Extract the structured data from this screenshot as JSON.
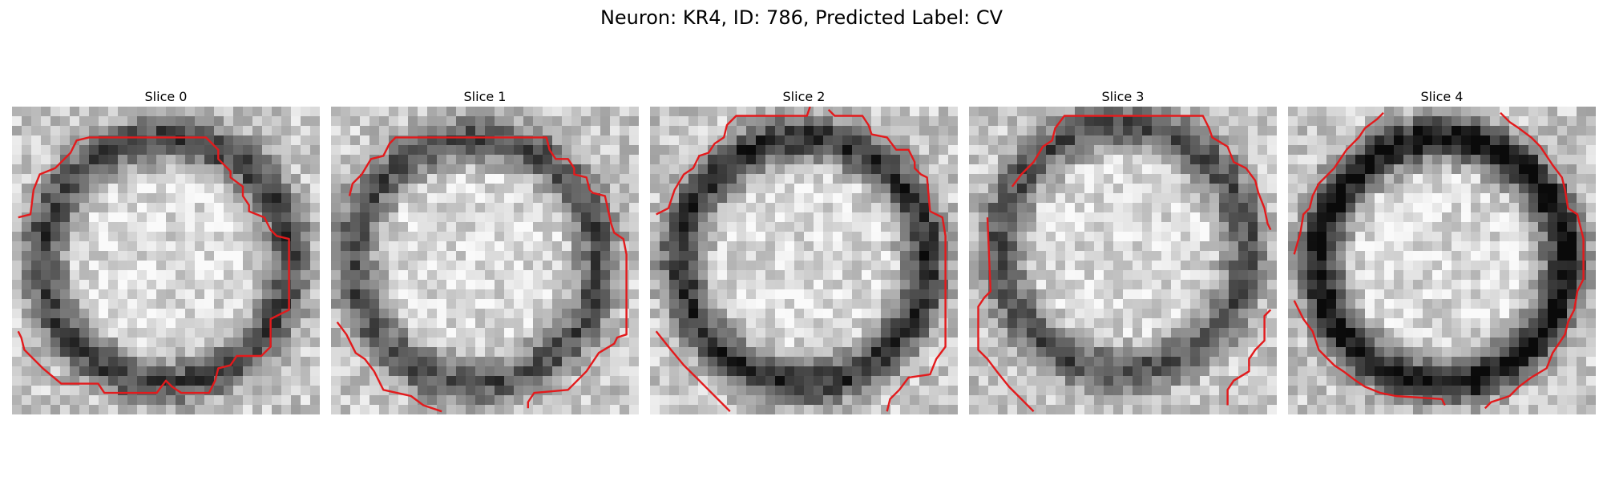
{
  "figure": {
    "title": "Neuron: KR4, ID: 786, Predicted Label: CV"
  },
  "colors": {
    "contour": "#e31a1c",
    "background": "#ffffff"
  },
  "slices": [
    {
      "title": "Slice 0",
      "seed": 11,
      "dark_ring": 0.55,
      "ring_shift_x": 0,
      "ring_shift_y": 0,
      "contour_segments": [
        [
          [
            0.02,
            0.36
          ],
          [
            0.06,
            0.35
          ],
          [
            0.07,
            0.27
          ],
          [
            0.09,
            0.22
          ],
          [
            0.14,
            0.2
          ],
          [
            0.19,
            0.15
          ],
          [
            0.21,
            0.11
          ],
          [
            0.25,
            0.1
          ],
          [
            0.63,
            0.1
          ],
          [
            0.67,
            0.14
          ],
          [
            0.67,
            0.17
          ],
          [
            0.71,
            0.21
          ],
          [
            0.71,
            0.23
          ],
          [
            0.75,
            0.26
          ],
          [
            0.75,
            0.29
          ],
          [
            0.77,
            0.32
          ],
          [
            0.77,
            0.34
          ],
          [
            0.82,
            0.36
          ],
          [
            0.84,
            0.4
          ],
          [
            0.86,
            0.42
          ],
          [
            0.9,
            0.43
          ],
          [
            0.9,
            0.66
          ],
          [
            0.86,
            0.68
          ],
          [
            0.84,
            0.69
          ],
          [
            0.84,
            0.78
          ],
          [
            0.81,
            0.81
          ],
          [
            0.73,
            0.81
          ],
          [
            0.71,
            0.84
          ],
          [
            0.67,
            0.85
          ],
          [
            0.66,
            0.89
          ],
          [
            0.64,
            0.93
          ],
          [
            0.55,
            0.93
          ],
          [
            0.52,
            0.91
          ],
          [
            0.5,
            0.89
          ],
          [
            0.47,
            0.93
          ],
          [
            0.3,
            0.93
          ],
          [
            0.28,
            0.9
          ],
          [
            0.16,
            0.9
          ],
          [
            0.1,
            0.85
          ],
          [
            0.04,
            0.79
          ],
          [
            0.03,
            0.75
          ],
          [
            0.02,
            0.73
          ]
        ]
      ]
    },
    {
      "title": "Slice 1",
      "seed": 23,
      "dark_ring": 0.5,
      "ring_shift_x": -0.03,
      "ring_shift_y": 0,
      "contour_segments": [
        [
          [
            0.06,
            0.29
          ],
          [
            0.07,
            0.25
          ],
          [
            0.1,
            0.22
          ],
          [
            0.13,
            0.17
          ],
          [
            0.17,
            0.16
          ],
          [
            0.19,
            0.12
          ],
          [
            0.21,
            0.1
          ],
          [
            0.7,
            0.1
          ],
          [
            0.71,
            0.14
          ],
          [
            0.73,
            0.17
          ],
          [
            0.77,
            0.17
          ],
          [
            0.79,
            0.2
          ],
          [
            0.79,
            0.22
          ],
          [
            0.83,
            0.23
          ],
          [
            0.84,
            0.27
          ],
          [
            0.85,
            0.28
          ],
          [
            0.89,
            0.29
          ],
          [
            0.91,
            0.38
          ],
          [
            0.92,
            0.41
          ],
          [
            0.95,
            0.43
          ],
          [
            0.96,
            0.48
          ],
          [
            0.96,
            0.74
          ],
          [
            0.93,
            0.75
          ],
          [
            0.92,
            0.77
          ],
          [
            0.87,
            0.8
          ],
          [
            0.85,
            0.83
          ],
          [
            0.83,
            0.86
          ],
          [
            0.77,
            0.92
          ],
          [
            0.66,
            0.93
          ],
          [
            0.64,
            0.96
          ],
          [
            0.64,
            0.98
          ]
        ],
        [
          [
            0.02,
            0.7
          ],
          [
            0.05,
            0.74
          ],
          [
            0.08,
            0.8
          ],
          [
            0.11,
            0.82
          ],
          [
            0.14,
            0.86
          ],
          [
            0.17,
            0.92
          ],
          [
            0.26,
            0.94
          ],
          [
            0.3,
            0.97
          ],
          [
            0.36,
            0.99
          ]
        ]
      ]
    },
    {
      "title": "Slice 2",
      "seed": 37,
      "dark_ring": 0.62,
      "ring_shift_x": 0,
      "ring_shift_y": 0,
      "contour_segments": [
        [
          [
            0.02,
            0.35
          ],
          [
            0.06,
            0.33
          ],
          [
            0.08,
            0.27
          ],
          [
            0.11,
            0.22
          ],
          [
            0.14,
            0.2
          ],
          [
            0.16,
            0.16
          ],
          [
            0.19,
            0.15
          ],
          [
            0.21,
            0.12
          ],
          [
            0.24,
            0.1
          ],
          [
            0.25,
            0.06
          ],
          [
            0.28,
            0.03
          ],
          [
            0.51,
            0.03
          ],
          [
            0.52,
            0.0
          ]
        ],
        [
          [
            0.58,
            0.01
          ],
          [
            0.6,
            0.03
          ],
          [
            0.69,
            0.03
          ],
          [
            0.71,
            0.06
          ],
          [
            0.72,
            0.09
          ],
          [
            0.77,
            0.1
          ],
          [
            0.8,
            0.14
          ],
          [
            0.84,
            0.14
          ],
          [
            0.86,
            0.18
          ],
          [
            0.86,
            0.2
          ],
          [
            0.88,
            0.22
          ],
          [
            0.9,
            0.23
          ],
          [
            0.91,
            0.34
          ],
          [
            0.95,
            0.36
          ],
          [
            0.96,
            0.42
          ],
          [
            0.96,
            0.78
          ],
          [
            0.93,
            0.82
          ],
          [
            0.91,
            0.87
          ],
          [
            0.84,
            0.88
          ],
          [
            0.81,
            0.92
          ],
          [
            0.78,
            0.95
          ],
          [
            0.77,
            0.99
          ]
        ],
        [
          [
            0.02,
            0.73
          ],
          [
            0.06,
            0.78
          ],
          [
            0.11,
            0.84
          ],
          [
            0.15,
            0.88
          ],
          [
            0.19,
            0.92
          ],
          [
            0.23,
            0.96
          ],
          [
            0.26,
            0.99
          ]
        ]
      ]
    },
    {
      "title": "Slice 3",
      "seed": 53,
      "dark_ring": 0.5,
      "ring_shift_x": 0,
      "ring_shift_y": -0.04,
      "contour_segments": [
        [
          [
            0.14,
            0.26
          ],
          [
            0.17,
            0.22
          ],
          [
            0.21,
            0.18
          ],
          [
            0.24,
            0.13
          ],
          [
            0.27,
            0.11
          ],
          [
            0.28,
            0.07
          ],
          [
            0.31,
            0.03
          ],
          [
            0.76,
            0.03
          ],
          [
            0.78,
            0.07
          ],
          [
            0.79,
            0.1
          ],
          [
            0.84,
            0.13
          ],
          [
            0.86,
            0.18
          ],
          [
            0.9,
            0.2
          ],
          [
            0.93,
            0.24
          ],
          [
            0.94,
            0.28
          ],
          [
            0.96,
            0.33
          ],
          [
            0.97,
            0.38
          ],
          [
            0.98,
            0.4
          ]
        ],
        [
          [
            0.06,
            0.36
          ],
          [
            0.07,
            0.6
          ],
          [
            0.05,
            0.62
          ],
          [
            0.03,
            0.65
          ],
          [
            0.03,
            0.79
          ],
          [
            0.06,
            0.82
          ],
          [
            0.09,
            0.86
          ],
          [
            0.13,
            0.91
          ],
          [
            0.17,
            0.95
          ],
          [
            0.21,
            0.99
          ]
        ],
        [
          [
            0.98,
            0.66
          ],
          [
            0.96,
            0.68
          ],
          [
            0.96,
            0.76
          ],
          [
            0.93,
            0.79
          ],
          [
            0.91,
            0.82
          ],
          [
            0.91,
            0.86
          ],
          [
            0.86,
            0.89
          ],
          [
            0.84,
            0.92
          ],
          [
            0.84,
            0.97
          ]
        ]
      ]
    },
    {
      "title": "Slice 4",
      "seed": 71,
      "dark_ring": 0.75,
      "ring_shift_x": 0,
      "ring_shift_y": 0,
      "contour_segments": [
        [
          [
            0.02,
            0.48
          ],
          [
            0.04,
            0.41
          ],
          [
            0.05,
            0.35
          ],
          [
            0.07,
            0.33
          ],
          [
            0.08,
            0.29
          ],
          [
            0.1,
            0.25
          ],
          [
            0.15,
            0.2
          ],
          [
            0.19,
            0.14
          ],
          [
            0.23,
            0.1
          ],
          [
            0.25,
            0.07
          ],
          [
            0.29,
            0.04
          ],
          [
            0.31,
            0.02
          ]
        ],
        [
          [
            0.69,
            0.02
          ],
          [
            0.72,
            0.05
          ],
          [
            0.75,
            0.07
          ],
          [
            0.79,
            0.1
          ],
          [
            0.82,
            0.13
          ],
          [
            0.86,
            0.19
          ],
          [
            0.89,
            0.23
          ],
          [
            0.9,
            0.27
          ],
          [
            0.91,
            0.33
          ],
          [
            0.94,
            0.35
          ],
          [
            0.95,
            0.39
          ],
          [
            0.96,
            0.43
          ],
          [
            0.96,
            0.56
          ],
          [
            0.94,
            0.6
          ],
          [
            0.93,
            0.66
          ],
          [
            0.91,
            0.7
          ],
          [
            0.9,
            0.74
          ],
          [
            0.86,
            0.8
          ],
          [
            0.84,
            0.85
          ],
          [
            0.79,
            0.88
          ],
          [
            0.75,
            0.91
          ],
          [
            0.72,
            0.94
          ],
          [
            0.66,
            0.96
          ],
          [
            0.64,
            0.98
          ]
        ],
        [
          [
            0.02,
            0.63
          ],
          [
            0.05,
            0.69
          ],
          [
            0.08,
            0.73
          ],
          [
            0.1,
            0.79
          ],
          [
            0.15,
            0.84
          ],
          [
            0.18,
            0.86
          ],
          [
            0.22,
            0.89
          ],
          [
            0.25,
            0.91
          ],
          [
            0.3,
            0.93
          ],
          [
            0.35,
            0.94
          ],
          [
            0.5,
            0.95
          ],
          [
            0.51,
            0.97
          ]
        ]
      ]
    }
  ]
}
